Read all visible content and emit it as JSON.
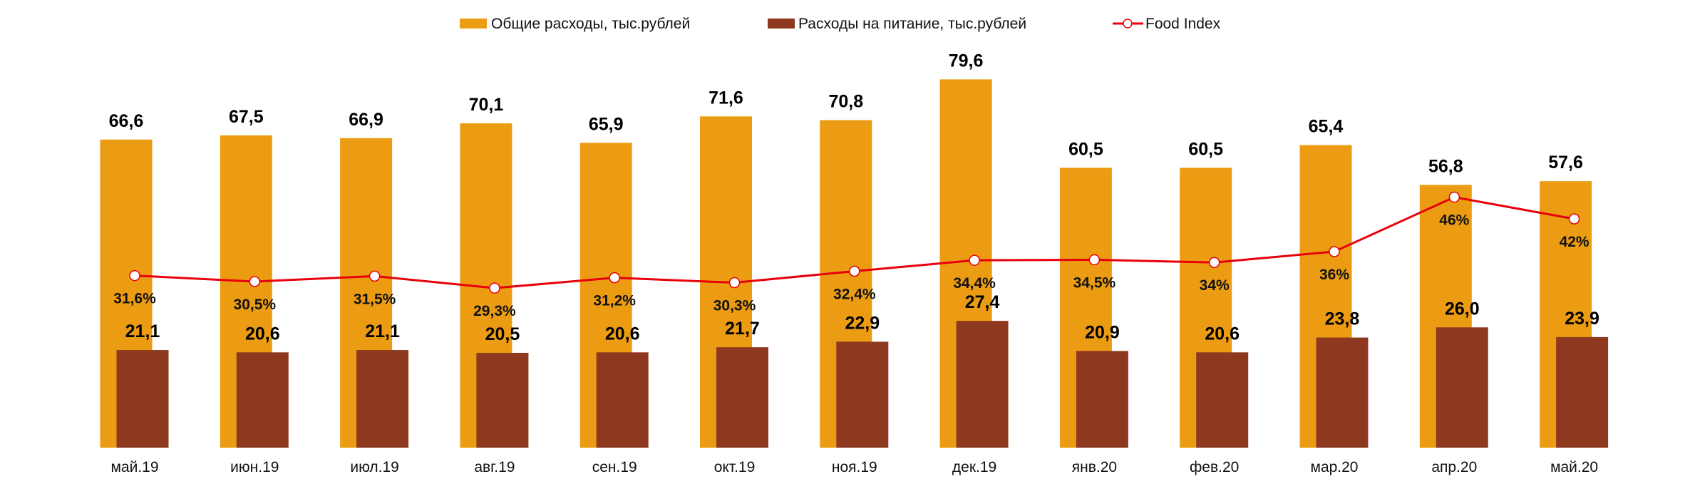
{
  "chart_data": {
    "type": "bar",
    "title": "",
    "xlabel": "",
    "ylabel": "",
    "legend_position": "top",
    "grid": false,
    "categories": [
      "май.19",
      "июн.19",
      "июл.19",
      "авг.19",
      "сен.19",
      "окт.19",
      "ноя.19",
      "дек.19",
      "янв.20",
      "фев.20",
      "мар.20",
      "апр.20",
      "май.20"
    ],
    "series": [
      {
        "name": "Общие расходы, тыс.рублей",
        "type": "bar",
        "color": "#EC9C12",
        "values": [
          66.6,
          67.5,
          66.9,
          70.1,
          65.9,
          71.6,
          70.8,
          79.6,
          60.5,
          60.5,
          65.4,
          56.8,
          57.6
        ],
        "labels": [
          "66,6",
          "67,5",
          "66,9",
          "70,1",
          "65,9",
          "71,6",
          "70,8",
          "79,6",
          "60,5",
          "60,5",
          "65,4",
          "56,8",
          "57,6"
        ]
      },
      {
        "name": "Расходы на питание, тыс.рублей",
        "type": "bar",
        "color": "#8E3820",
        "values": [
          21.1,
          20.6,
          21.1,
          20.5,
          20.6,
          21.7,
          22.9,
          27.4,
          20.9,
          20.6,
          23.8,
          26.0,
          23.9
        ],
        "labels": [
          "21,1",
          "20,6",
          "21,1",
          "20,5",
          "20,6",
          "21,7",
          "22,9",
          "27,4",
          "20,9",
          "20,6",
          "23,8",
          "26,0",
          "23,9"
        ]
      },
      {
        "name": "Food Index",
        "type": "line",
        "color": "#E8000B",
        "axis": "secondary",
        "unit": "%",
        "values": [
          31.6,
          30.5,
          31.5,
          29.3,
          31.2,
          30.3,
          32.4,
          34.4,
          34.5,
          34,
          36,
          46,
          42
        ],
        "labels": [
          "31,6%",
          "30,5%",
          "31,5%",
          "29,3%",
          "31,2%",
          "30,3%",
          "32,4%",
          "34,4%",
          "34,5%",
          "34%",
          "36%",
          "46%",
          "42%"
        ]
      }
    ]
  }
}
